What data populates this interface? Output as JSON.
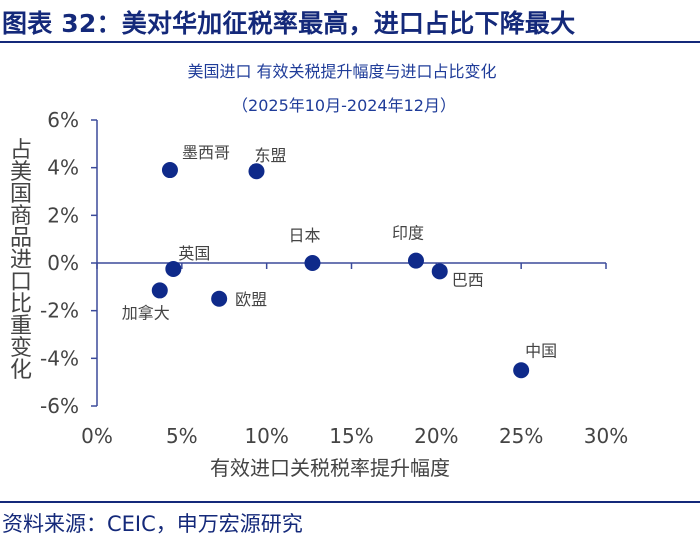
{
  "header": {
    "title": "图表 32：美对华加征税率最高，进口占比下降最大"
  },
  "chart_data": {
    "type": "scatter",
    "title": "美国进口 有效关税提升幅度与进口占比变化",
    "subtitle": "（2025年10月-2024年12月）",
    "xlabel": "有效进口关税税率提升幅度",
    "ylabel": "占美国商品进口比重变化",
    "xlim": [
      0,
      30
    ],
    "ylim": [
      -6,
      6
    ],
    "x_ticks": [
      "0%",
      "5%",
      "10%",
      "15%",
      "20%",
      "25%",
      "30%"
    ],
    "y_ticks": [
      "6%",
      "4%",
      "2%",
      "0%",
      "-2%",
      "-4%",
      "-6%"
    ],
    "grid": false,
    "color": "#0f2a8a",
    "points": [
      {
        "label": "墨西哥",
        "x": 4.3,
        "y": 3.9
      },
      {
        "label": "东盟",
        "x": 9.4,
        "y": 3.85
      },
      {
        "label": "英国",
        "x": 4.5,
        "y": -0.25
      },
      {
        "label": "加拿大",
        "x": 3.7,
        "y": -1.15
      },
      {
        "label": "欧盟",
        "x": 7.2,
        "y": -1.5
      },
      {
        "label": "日本",
        "x": 12.7,
        "y": 0.0
      },
      {
        "label": "印度",
        "x": 18.8,
        "y": 0.1
      },
      {
        "label": "巴西",
        "x": 20.2,
        "y": -0.35
      },
      {
        "label": "中国",
        "x": 25.0,
        "y": -4.5
      }
    ]
  },
  "footer": {
    "source": "资料来源：CEIC，申万宏源研究"
  }
}
